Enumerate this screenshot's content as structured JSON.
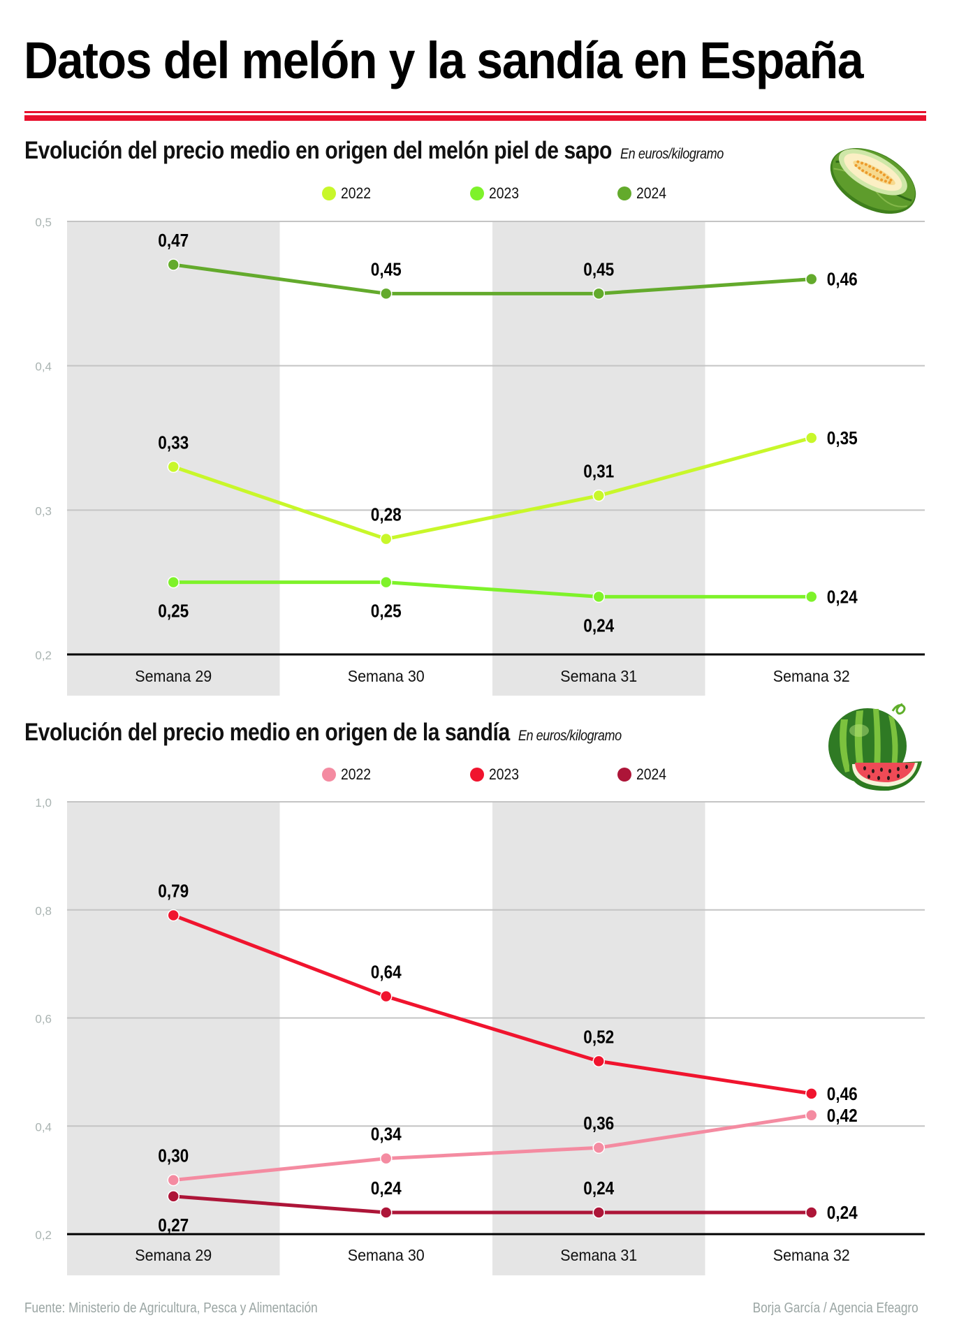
{
  "title": "Datos del melón y la sandía en España",
  "colors": {
    "accent_rule": "#e8112d",
    "band": "#e5e5e5",
    "grid": "#c4c4c4",
    "axis": "#000000",
    "tick": "#a9b3b1"
  },
  "melon_chart": {
    "title": "Evolución del precio medio en origen del melón piel de sapo",
    "units": "En euros/kilogramo",
    "icon": "melon-piel-de-sapo-illustration"
  },
  "watermelon_chart": {
    "title": "Evolución del precio medio en origen de la sandía",
    "units": "En euros/kilogramo",
    "icon": "watermelon-illustration"
  },
  "chart_data": [
    {
      "type": "line",
      "title": "Evolución del precio medio en origen del melón piel de sapo",
      "ylabel": "En euros/kilogramo",
      "xlabel": "",
      "categories": [
        "Semana 29",
        "Semana 30",
        "Semana 31",
        "Semana 32"
      ],
      "ylim": [
        0.2,
        0.5
      ],
      "yticks": [
        0.2,
        0.3,
        0.4,
        0.5
      ],
      "ytick_labels": [
        "0,2",
        "0,3",
        "0,4",
        "0,5"
      ],
      "grid": true,
      "legend_position": "top-center",
      "series": [
        {
          "name": "2022",
          "color": "#c8f72a",
          "values": [
            0.33,
            0.28,
            0.31,
            0.35
          ],
          "labels": [
            "0,33",
            "0,28",
            "0,31",
            "0,35"
          ],
          "label_pos": [
            "above",
            "above",
            "above",
            "right"
          ]
        },
        {
          "name": "2023",
          "color": "#7ef22a",
          "values": [
            0.25,
            0.25,
            0.24,
            0.24
          ],
          "labels": [
            "0,25",
            "0,25",
            "0,24",
            "0,24"
          ],
          "label_pos": [
            "below",
            "below",
            "below",
            "right"
          ]
        },
        {
          "name": "2024",
          "color": "#63aa2c",
          "values": [
            0.47,
            0.45,
            0.45,
            0.46
          ],
          "labels": [
            "0,47",
            "0,45",
            "0,45",
            "0,46"
          ],
          "label_pos": [
            "above",
            "above",
            "above",
            "right"
          ]
        }
      ]
    },
    {
      "type": "line",
      "title": "Evolución del precio medio en origen de la sandía",
      "ylabel": "En euros/kilogramo",
      "xlabel": "",
      "categories": [
        "Semana 29",
        "Semana 30",
        "Semana 31",
        "Semana 32"
      ],
      "ylim": [
        0.2,
        1.0
      ],
      "yticks": [
        0.2,
        0.4,
        0.6,
        0.8,
        1.0
      ],
      "ytick_labels": [
        "0,2",
        "0,4",
        "0,6",
        "0,8",
        "1,0"
      ],
      "grid": true,
      "legend_position": "top-center",
      "series": [
        {
          "name": "2022",
          "color": "#f48ba1",
          "values": [
            0.3,
            0.34,
            0.36,
            0.42
          ],
          "labels": [
            "0,30",
            "0,34",
            "0,36",
            "0,42"
          ],
          "label_pos": [
            "above",
            "above",
            "above",
            "right"
          ]
        },
        {
          "name": "2023",
          "color": "#f0142e",
          "values": [
            0.79,
            0.64,
            0.52,
            0.46
          ],
          "labels": [
            "0,79",
            "0,64",
            "0,52",
            "0,46"
          ],
          "label_pos": [
            "above",
            "above",
            "above",
            "right"
          ]
        },
        {
          "name": "2024",
          "color": "#ad1538",
          "values": [
            0.27,
            0.24,
            0.24,
            0.24
          ],
          "labels": [
            "0,27",
            "0,24",
            "0,24",
            "0,24"
          ],
          "label_pos": [
            "below",
            "above",
            "above",
            "right"
          ]
        }
      ]
    }
  ],
  "footer": {
    "source": "Fuente: Ministerio de Agricultura, Pesca y Alimentación",
    "credit": "Borja García / Agencia Efeagro"
  }
}
